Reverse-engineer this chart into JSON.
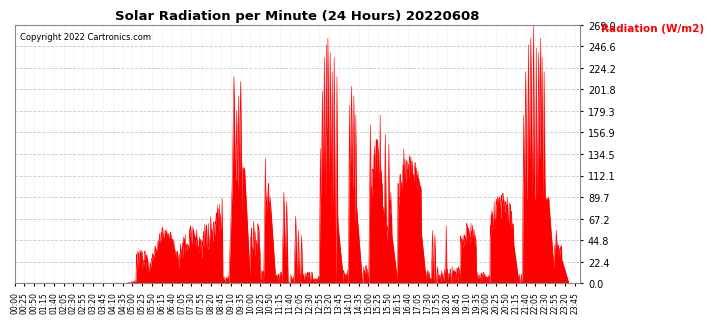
{
  "title": "Solar Radiation per Minute (24 Hours) 20220608",
  "ylabel": "Radiation (W/m2)",
  "copyright_text": "Copyright 2022 Cartronics.com",
  "fill_color": "#FF0000",
  "line_color": "#FF0000",
  "background_color": "#FFFFFF",
  "grid_color": "#BBBBBB",
  "dashed_line_color": "#FF0000",
  "ylim": [
    0.0,
    269.0
  ],
  "yticks": [
    0.0,
    22.4,
    44.8,
    67.2,
    89.7,
    112.1,
    134.5,
    156.9,
    179.3,
    201.8,
    224.2,
    246.6,
    269.0
  ],
  "total_minutes": 1440,
  "x_tick_interval": 25,
  "sunrise_minute": 315,
  "sunset_minute": 1220
}
